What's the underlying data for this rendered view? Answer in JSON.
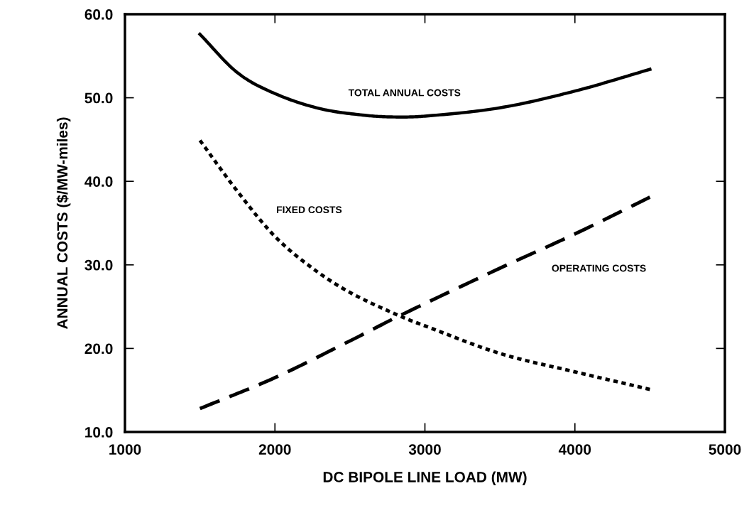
{
  "chart_data": {
    "type": "line",
    "xlabel": "DC BIPOLE LINE LOAD (MW)",
    "ylabel": "ANNUAL COSTS ($/MW-miles)",
    "xlim": [
      1000,
      5000
    ],
    "xticks": [
      1000,
      2000,
      3000,
      4000,
      5000
    ],
    "ylim": [
      10,
      60
    ],
    "yticks": [
      {
        "value": 10,
        "label": "10.0"
      },
      {
        "value": 20,
        "label": "20.0"
      },
      {
        "value": 30,
        "label": "30.0"
      },
      {
        "value": 40,
        "label": "40.0"
      },
      {
        "value": 50,
        "label": "50.0"
      },
      {
        "value": 60,
        "label": "60.0"
      }
    ],
    "grid": false,
    "marker": "none",
    "series": [
      {
        "name": "TOTAL ANNUAL COSTS",
        "color": "#000000",
        "line_style": "solid",
        "x": [
          1500,
          1750,
          2000,
          2300,
          2600,
          2800,
          3000,
          3500,
          4000,
          4500
        ],
        "values": [
          57.6,
          53.0,
          50.5,
          48.7,
          47.9,
          47.7,
          47.8,
          48.8,
          50.8,
          53.4
        ]
      },
      {
        "name": "FIXED COSTS",
        "color": "#000000",
        "line_style": "dotted",
        "x": [
          1500,
          1750,
          2000,
          2250,
          2500,
          2830,
          3000,
          3500,
          4000,
          4500
        ],
        "values": [
          44.9,
          38.8,
          33.4,
          29.6,
          26.7,
          23.9,
          22.7,
          19.4,
          17.2,
          15.1
        ]
      },
      {
        "name": "OPERATING COSTS",
        "color": "#000000",
        "line_style": "dashed",
        "x": [
          1500,
          2000,
          2500,
          2830,
          3500,
          4000,
          4500
        ],
        "values": [
          12.8,
          16.5,
          20.9,
          23.9,
          29.6,
          33.7,
          38.1
        ]
      }
    ]
  }
}
